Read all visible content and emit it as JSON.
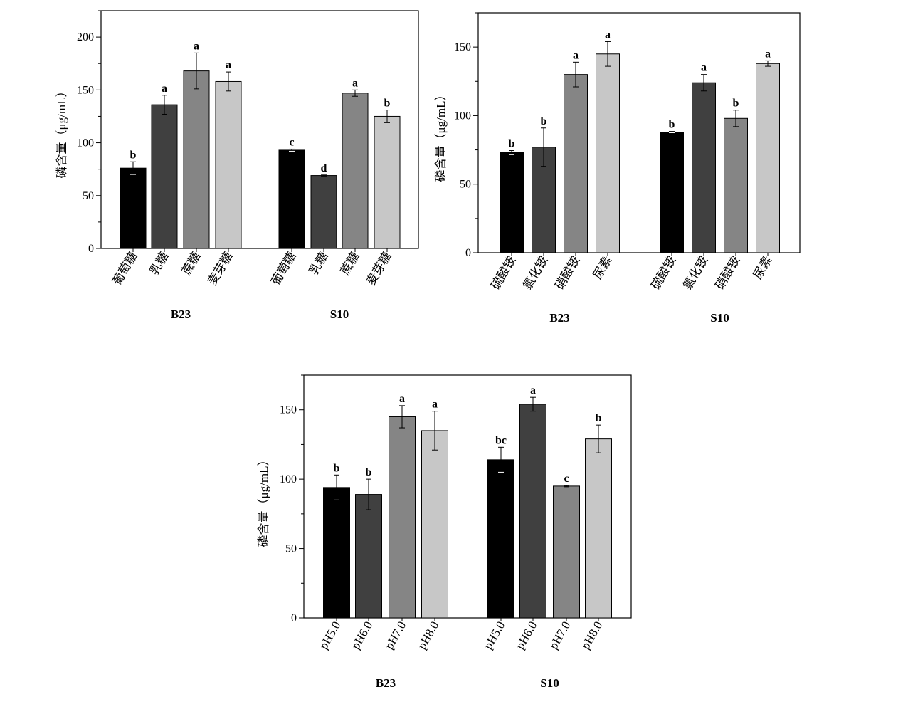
{
  "colors": {
    "bar": [
      "#000000",
      "#404040",
      "#858585",
      "#c7c7c7"
    ],
    "axis": "#000000"
  },
  "chart_data": [
    {
      "id": "carbon",
      "type": "bar",
      "ylabel": "磷含量（μg/mL）",
      "ylim": [
        0,
        225
      ],
      "yticks": [
        0,
        50,
        100,
        150,
        200
      ],
      "groups": [
        {
          "name": "B23",
          "bars": [
            {
              "category": "葡萄糖",
              "value": 76,
              "err": 6,
              "sig": "b"
            },
            {
              "category": "乳糖",
              "value": 136,
              "err": 9,
              "sig": "a"
            },
            {
              "category": "蔗糖",
              "value": 168,
              "err": 17,
              "sig": "a"
            },
            {
              "category": "麦芽糖",
              "value": 158,
              "err": 9,
              "sig": "a"
            }
          ]
        },
        {
          "name": "S10",
          "bars": [
            {
              "category": "葡萄糖",
              "value": 93,
              "err": 1,
              "sig": "c"
            },
            {
              "category": "乳糖",
              "value": 69,
              "err": 0.5,
              "sig": "d"
            },
            {
              "category": "蔗糖",
              "value": 147,
              "err": 3,
              "sig": "a"
            },
            {
              "category": "麦芽糖",
              "value": 125,
              "err": 6,
              "sig": "b"
            }
          ]
        }
      ]
    },
    {
      "id": "nitrogen",
      "type": "bar",
      "ylabel": "磷含量（μg/mL）",
      "ylim": [
        0,
        175
      ],
      "yticks": [
        0,
        50,
        100,
        150
      ],
      "groups": [
        {
          "name": "B23",
          "bars": [
            {
              "category": "硫酸铵",
              "value": 73,
              "err": 1.5,
              "sig": "b"
            },
            {
              "category": "氯化铵",
              "value": 77,
              "err": 14,
              "sig": "b"
            },
            {
              "category": "硝酸铵",
              "value": 130,
              "err": 9,
              "sig": "a"
            },
            {
              "category": "尿素",
              "value": 145,
              "err": 9,
              "sig": "a"
            }
          ]
        },
        {
          "name": "S10",
          "bars": [
            {
              "category": "硫酸铵",
              "value": 88,
              "err": 0.5,
              "sig": "b"
            },
            {
              "category": "氯化铵",
              "value": 124,
              "err": 6,
              "sig": "a"
            },
            {
              "category": "硝酸铵",
              "value": 98,
              "err": 6,
              "sig": "b"
            },
            {
              "category": "尿素",
              "value": 138,
              "err": 2,
              "sig": "a"
            }
          ]
        }
      ]
    },
    {
      "id": "ph",
      "type": "bar",
      "ylabel": "磷含量（μg/mL）",
      "ylim": [
        0,
        175
      ],
      "yticks": [
        0,
        50,
        100,
        150
      ],
      "groups": [
        {
          "name": "B23",
          "bars": [
            {
              "category": "pH5.0",
              "value": 94,
              "err": 9,
              "sig": "b"
            },
            {
              "category": "pH6.0",
              "value": 89,
              "err": 11,
              "sig": "b"
            },
            {
              "category": "pH7.0",
              "value": 145,
              "err": 8,
              "sig": "a"
            },
            {
              "category": "pH8.0",
              "value": 135,
              "err": 14,
              "sig": "a"
            }
          ]
        },
        {
          "name": "S10",
          "bars": [
            {
              "category": "pH5.0",
              "value": 114,
              "err": 9,
              "sig": "bc"
            },
            {
              "category": "pH6.0",
              "value": 154,
              "err": 5,
              "sig": "a"
            },
            {
              "category": "pH7.0",
              "value": 95,
              "err": 0.5,
              "sig": "c"
            },
            {
              "category": "pH8.0",
              "value": 129,
              "err": 10,
              "sig": "b"
            }
          ]
        }
      ]
    }
  ]
}
